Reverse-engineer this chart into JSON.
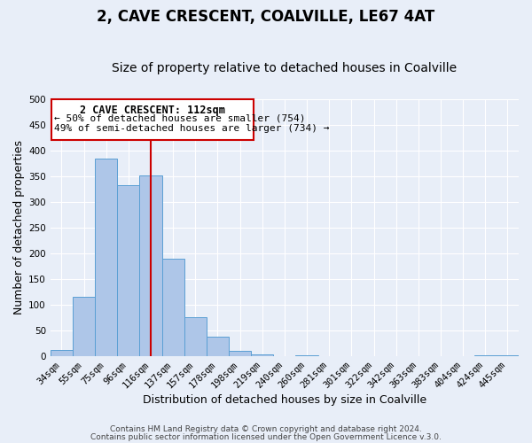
{
  "title": "2, CAVE CRESCENT, COALVILLE, LE67 4AT",
  "subtitle": "Size of property relative to detached houses in Coalville",
  "xlabel": "Distribution of detached houses by size in Coalville",
  "ylabel": "Number of detached properties",
  "bar_labels": [
    "34sqm",
    "55sqm",
    "75sqm",
    "96sqm",
    "116sqm",
    "137sqm",
    "157sqm",
    "178sqm",
    "198sqm",
    "219sqm",
    "240sqm",
    "260sqm",
    "281sqm",
    "301sqm",
    "322sqm",
    "342sqm",
    "363sqm",
    "383sqm",
    "404sqm",
    "424sqm",
    "445sqm"
  ],
  "bar_heights": [
    12,
    115,
    385,
    333,
    352,
    190,
    76,
    38,
    10,
    3,
    0,
    2,
    0,
    0,
    0,
    0,
    0,
    0,
    0,
    2,
    2
  ],
  "bar_color": "#aec6e8",
  "bar_edge_color": "#5a9fd4",
  "vline_x_index": 4,
  "vline_color": "#cc0000",
  "ylim": [
    0,
    500
  ],
  "yticks": [
    0,
    50,
    100,
    150,
    200,
    250,
    300,
    350,
    400,
    450,
    500
  ],
  "annotation_title": "2 CAVE CRESCENT: 112sqm",
  "annotation_line1": "← 50% of detached houses are smaller (754)",
  "annotation_line2": "49% of semi-detached houses are larger (734) →",
  "annotation_box_color": "#cc0000",
  "footer1": "Contains HM Land Registry data © Crown copyright and database right 2024.",
  "footer2": "Contains public sector information licensed under the Open Government Licence v.3.0.",
  "background_color": "#e8eef8",
  "grid_color": "#ffffff",
  "title_fontsize": 12,
  "subtitle_fontsize": 10,
  "axis_label_fontsize": 9,
  "tick_fontsize": 7.5,
  "footer_fontsize": 6.5,
  "annotation_title_fontsize": 8.5,
  "annotation_text_fontsize": 8
}
